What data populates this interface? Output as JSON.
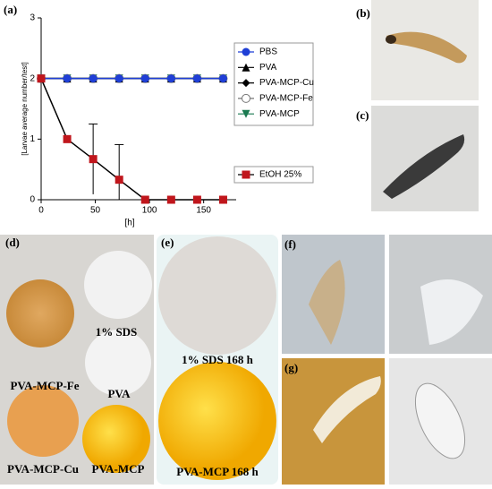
{
  "panel_labels": [
    "(a)",
    "(b)",
    "(c)",
    "(d)",
    "(e)",
    "(f)",
    "(g)"
  ],
  "photo_captions": {
    "d": [
      "1% SDS",
      "PVA-MCP-Fe",
      "PVA",
      "PVA-MCP-Cu",
      "PVA-MCP"
    ],
    "e": [
      "1% SDS 168 h",
      "PVA-MCP 168 h"
    ]
  },
  "chart_data": {
    "type": "line",
    "x_label": "[h]",
    "y_label": "[Larvae average number/test]",
    "x": [
      0,
      24,
      48,
      72,
      96,
      120,
      144,
      168
    ],
    "xlim": [
      0,
      180
    ],
    "xticks": [
      0,
      50,
      100,
      150
    ],
    "ylim": [
      0,
      3
    ],
    "yticks": [
      0,
      1,
      2,
      3
    ],
    "series": [
      {
        "name": "PBS",
        "color": "#1f3fd6",
        "marker": "circle",
        "values": [
          2,
          2,
          2,
          2,
          2,
          2,
          2,
          2
        ]
      },
      {
        "name": "PVA",
        "color": "#000000",
        "marker": "triangle",
        "values": [
          2,
          2,
          2,
          2,
          2,
          2,
          2,
          2
        ]
      },
      {
        "name": "PVA-MCP-Cu",
        "color": "#000000",
        "marker": "diamond",
        "values": [
          2,
          2,
          2,
          2,
          2,
          2,
          2,
          2
        ]
      },
      {
        "name": "PVA-MCP-Fe",
        "color": "#777777",
        "marker": "open-circle",
        "values": [
          2,
          2,
          2,
          2,
          2,
          2,
          2,
          2
        ]
      },
      {
        "name": "PVA-MCP",
        "color": "#1a7a50",
        "marker": "triangle-down",
        "values": [
          2,
          2,
          2,
          2,
          2,
          2,
          2,
          2
        ]
      },
      {
        "name": "EtOH 25%",
        "color": "#c0161c",
        "line_color": "#000000",
        "marker": "square",
        "values": [
          2,
          1,
          0.67,
          0.33,
          0,
          0,
          0,
          0
        ],
        "errors": [
          null,
          null,
          0.58,
          0.58,
          null,
          null,
          null,
          null
        ]
      }
    ]
  }
}
